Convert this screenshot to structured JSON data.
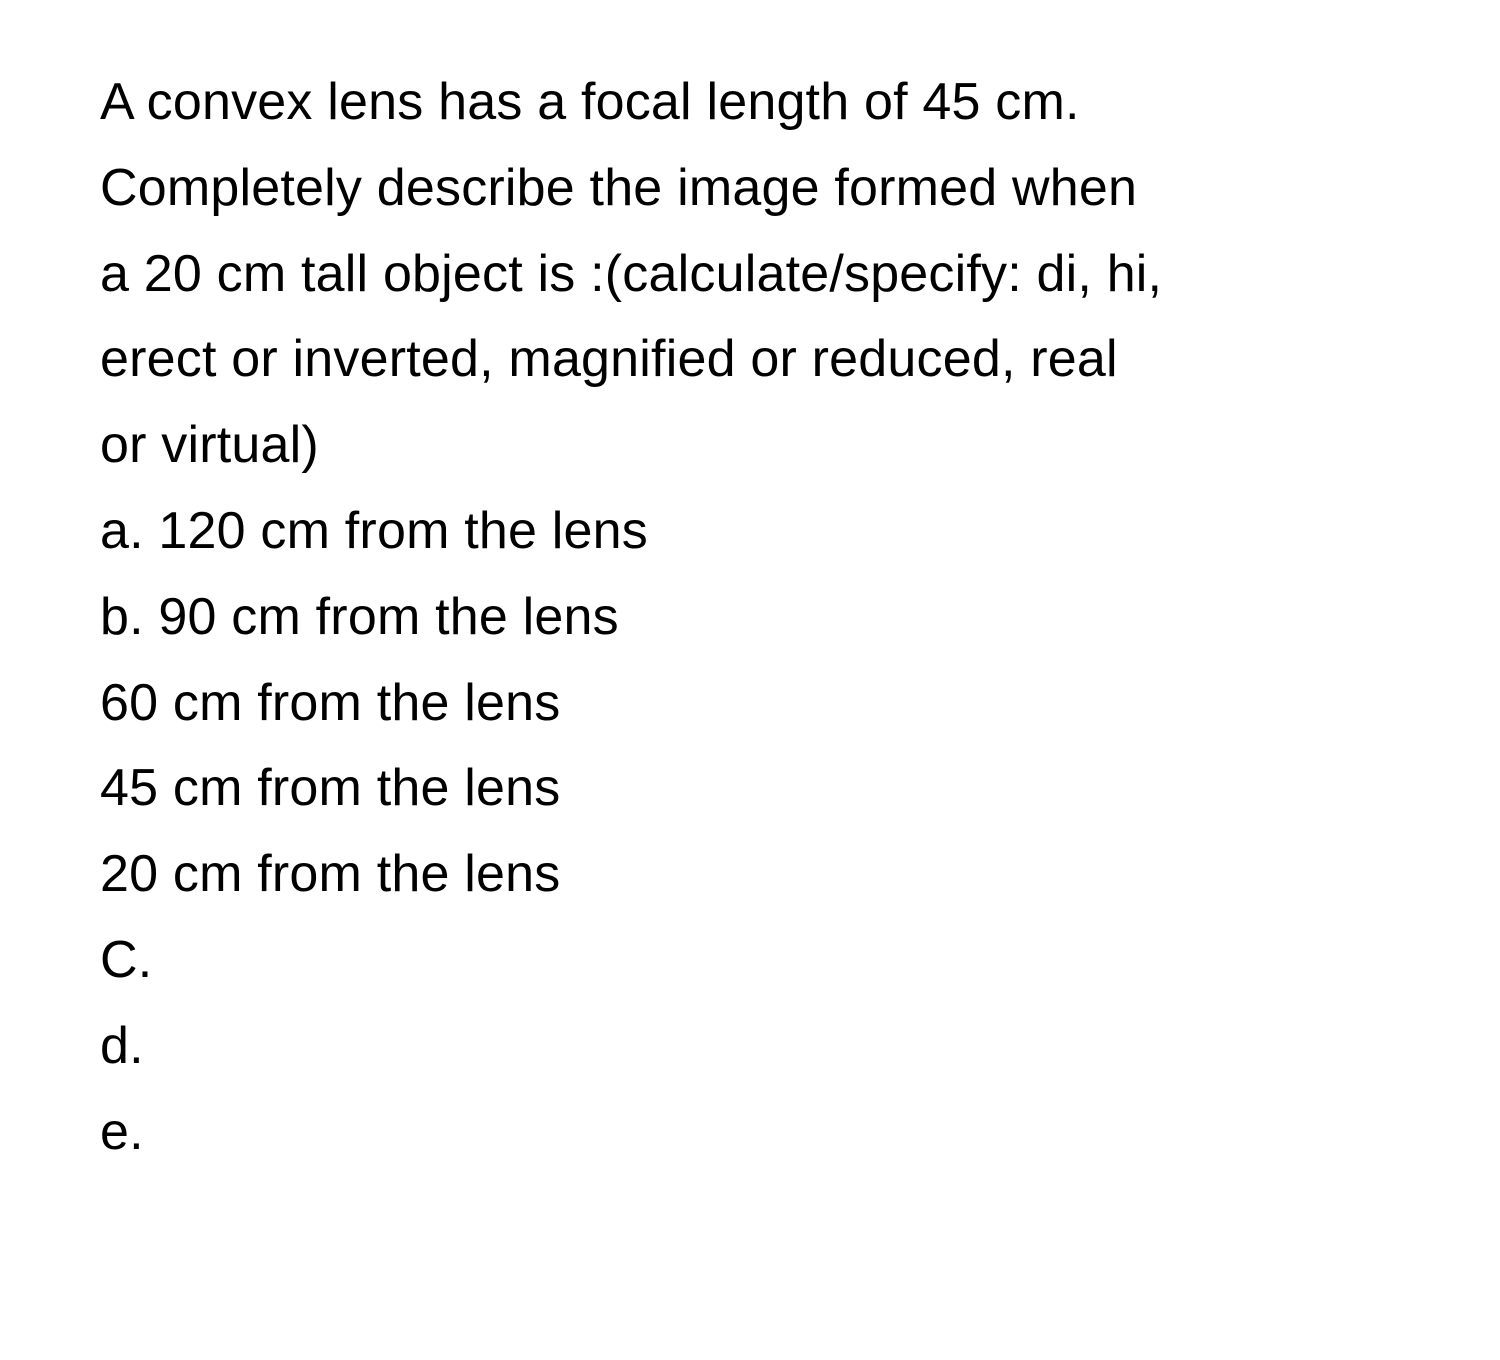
{
  "font": {
    "family": "-apple-system",
    "size_pt": 39,
    "weight": 400,
    "color": "#000000"
  },
  "background_color": "#ffffff",
  "lines": [
    "A convex lens has a focal length of 45 cm.",
    "Completely describe the image formed when",
    "a 20 cm tall object is :(calculate/specify: di, hi,",
    "erect or inverted, magnified or reduced, real",
    "or virtual)",
    "a. 120 cm from the lens",
    "b. 90 cm from the lens",
    "60 cm from the lens",
    "45 cm from the lens",
    "20 cm from the lens",
    "C.",
    "d.",
    "e."
  ]
}
